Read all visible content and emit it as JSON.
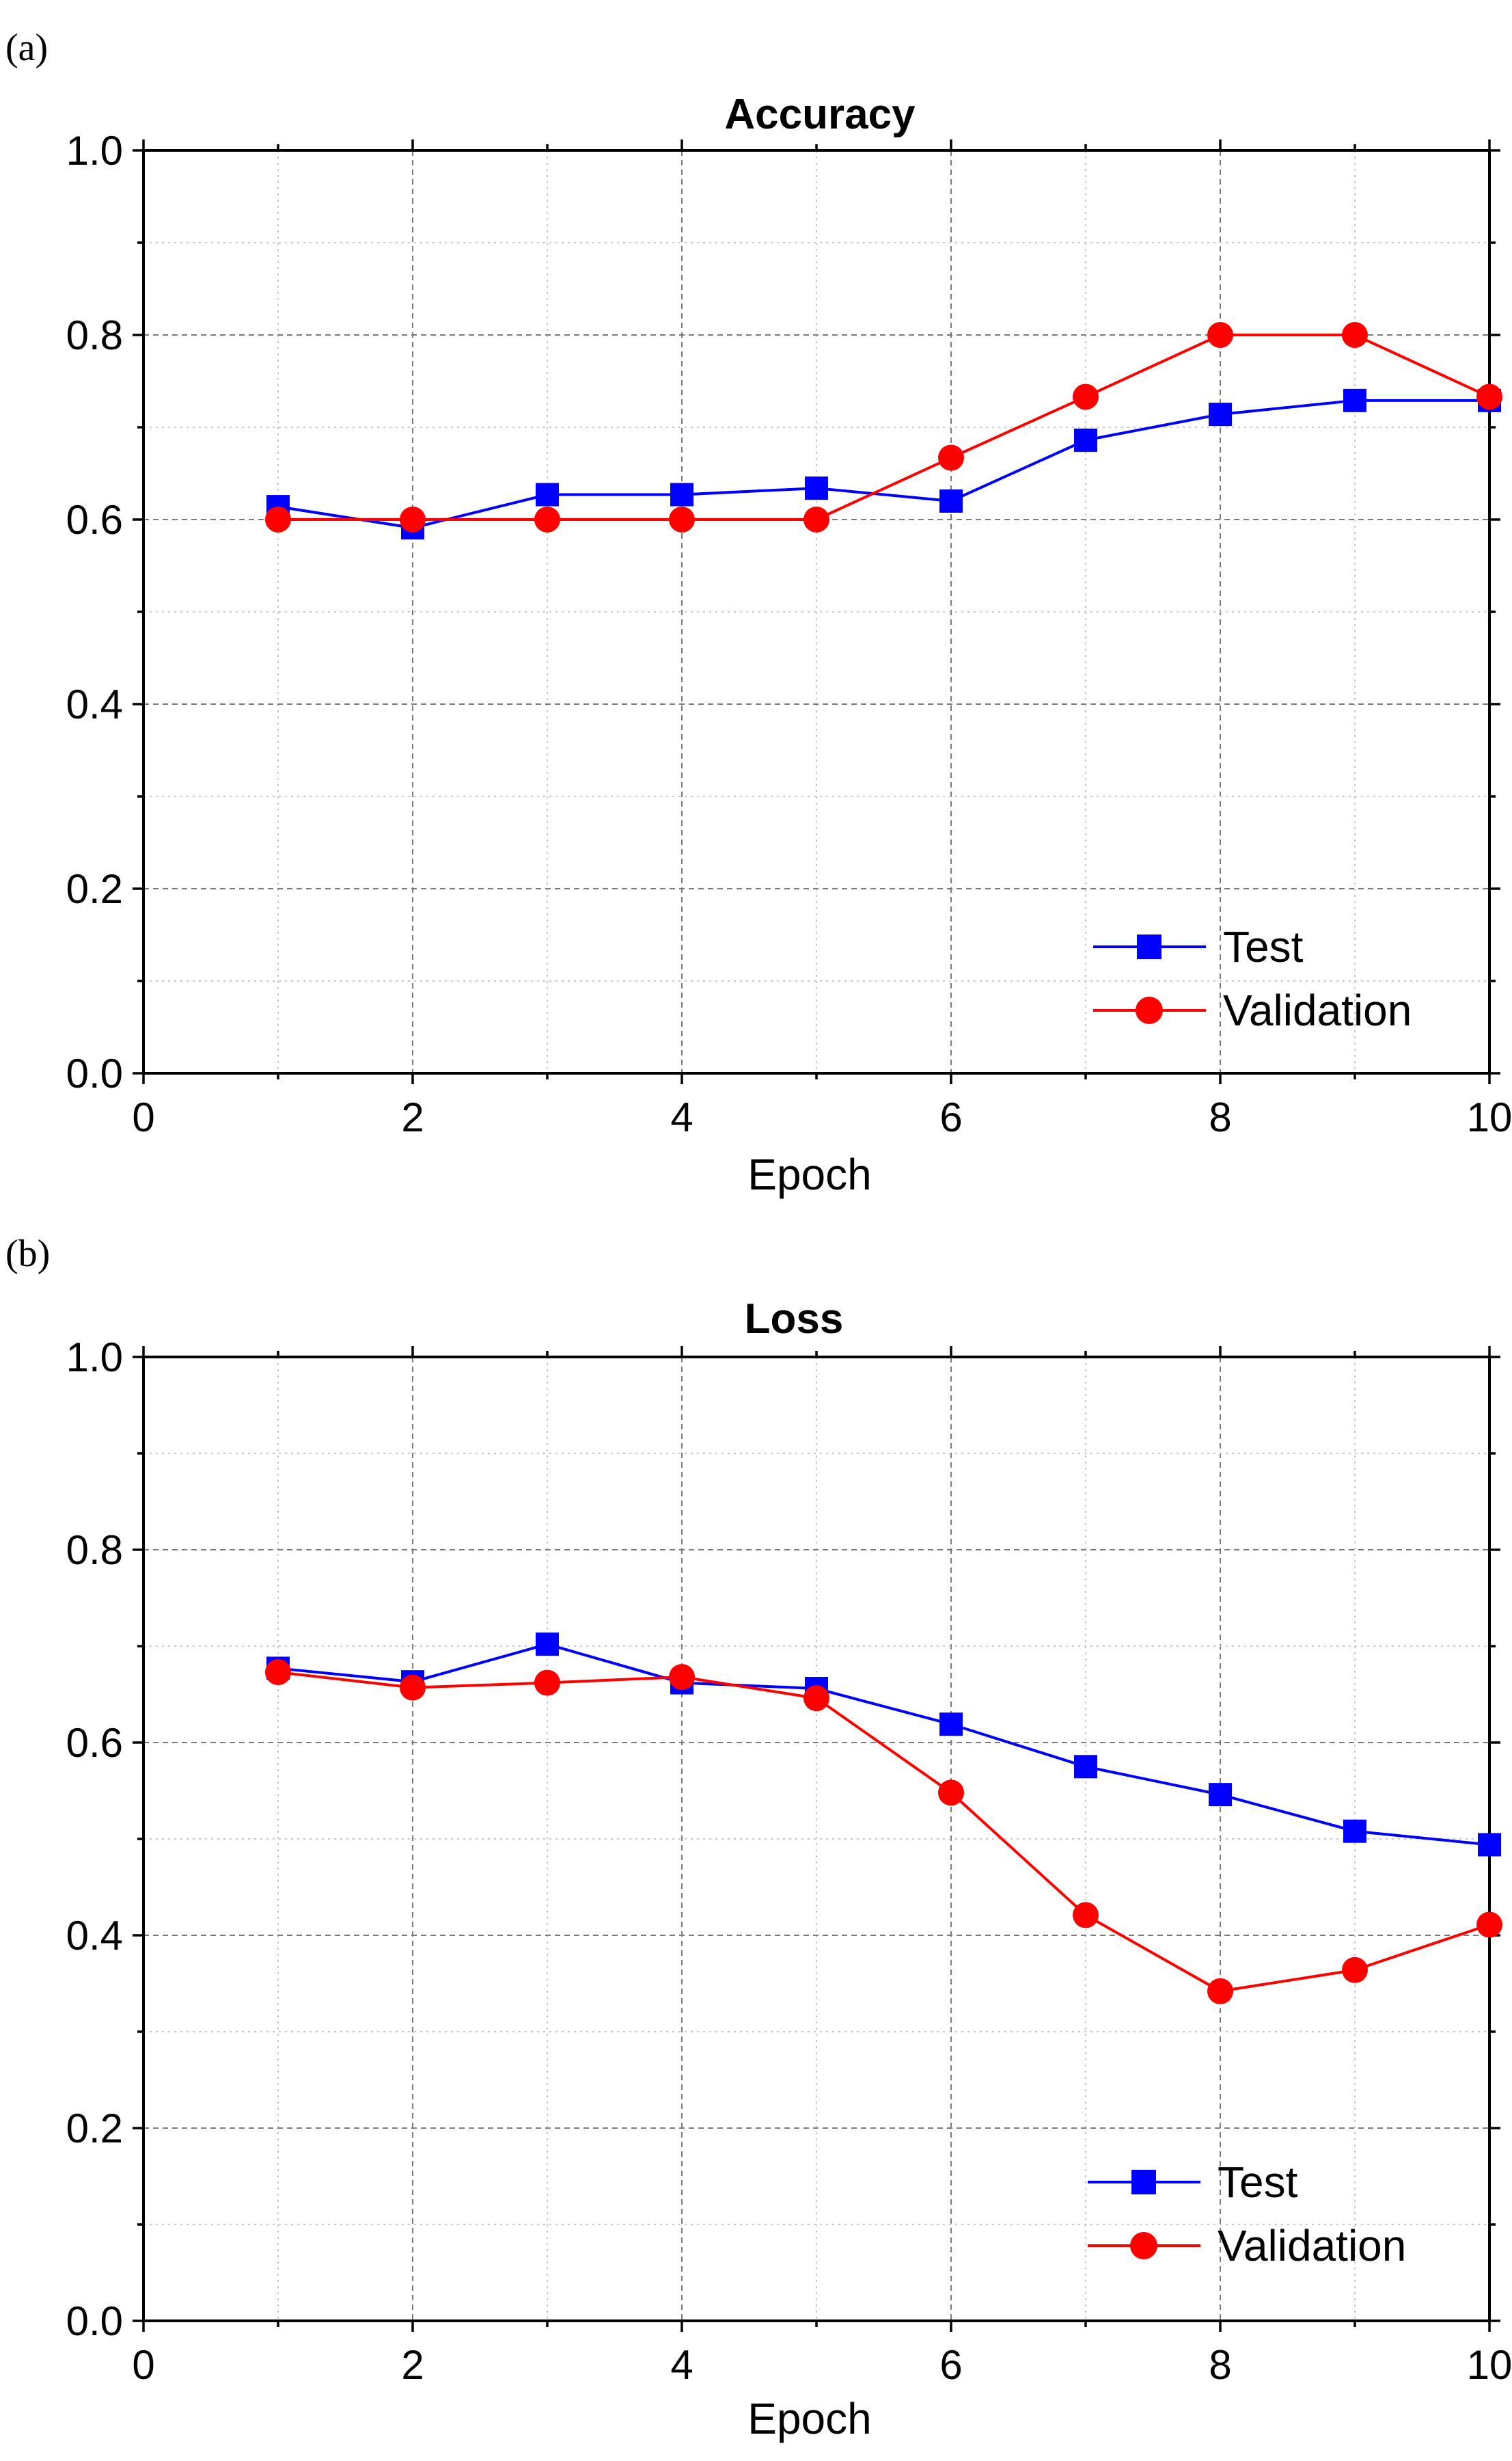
{
  "chart_data": [
    {
      "type": "line",
      "panel_label": "(a)",
      "title": "Accuracy",
      "xlabel": "Epoch",
      "ylabel": "",
      "x": [
        1,
        2,
        3,
        4,
        5,
        6,
        7,
        8,
        9,
        10
      ],
      "xlim": [
        0,
        10
      ],
      "ylim": [
        0,
        1.0
      ],
      "xticks": [
        "0",
        "2",
        "4",
        "6",
        "8",
        "10"
      ],
      "yticks": [
        "0.0",
        "0.2",
        "0.4",
        "0.6",
        "0.8",
        "1.0"
      ],
      "grid": true,
      "legend_position": "bottom-right",
      "series": [
        {
          "name": "Test",
          "color": "#0000ff",
          "marker": "square",
          "values": [
            0.614,
            0.591,
            0.627,
            0.627,
            0.634,
            0.62,
            0.686,
            0.714,
            0.729,
            0.729
          ]
        },
        {
          "name": "Validation",
          "color": "#ff0000",
          "marker": "circle",
          "values": [
            0.6,
            0.6,
            0.6,
            0.6,
            0.6,
            0.667,
            0.733,
            0.8,
            0.8,
            0.733
          ]
        }
      ]
    },
    {
      "type": "line",
      "panel_label": "(b)",
      "title": "Loss",
      "xlabel": "Epoch",
      "ylabel": "",
      "x": [
        1,
        2,
        3,
        4,
        5,
        6,
        7,
        8,
        9,
        10
      ],
      "xlim": [
        0,
        10
      ],
      "ylim": [
        0,
        1.0
      ],
      "xticks": [
        "0",
        "2",
        "4",
        "6",
        "8",
        "10"
      ],
      "yticks": [
        "0.0",
        "0.2",
        "0.4",
        "0.6",
        "0.8",
        "1.0"
      ],
      "grid": true,
      "legend_position": "bottom-right",
      "series": [
        {
          "name": "Test",
          "color": "#0000ff",
          "marker": "square",
          "values": [
            0.677,
            0.663,
            0.702,
            0.662,
            0.656,
            0.619,
            0.575,
            0.546,
            0.508,
            0.494
          ]
        },
        {
          "name": "Validation",
          "color": "#ff0000",
          "marker": "circle",
          "values": [
            0.673,
            0.657,
            0.662,
            0.668,
            0.646,
            0.548,
            0.421,
            0.342,
            0.364,
            0.411
          ]
        }
      ]
    }
  ]
}
